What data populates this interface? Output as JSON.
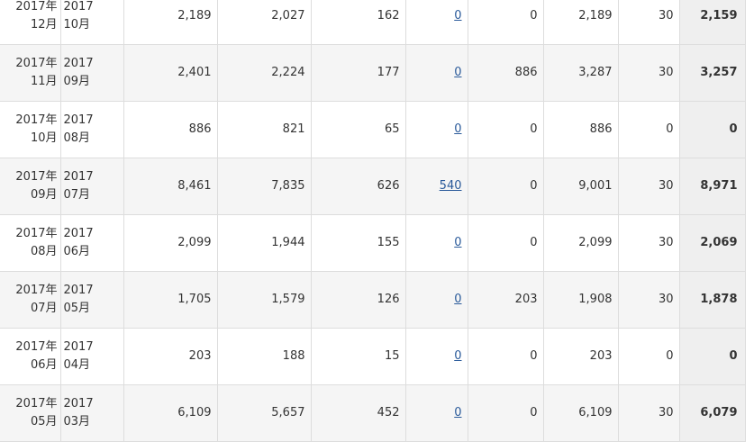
{
  "table": {
    "rows": [
      [
        [
          "2017年",
          "12月"
        ],
        [
          "2017",
          "10月"
        ],
        "2,189",
        "2,027",
        "162",
        "0",
        "0",
        "2,189",
        "30",
        "2,159"
      ],
      [
        [
          "2017年",
          "11月"
        ],
        [
          "2017",
          "09月"
        ],
        "2,401",
        "2,224",
        "177",
        "0",
        "886",
        "3,287",
        "30",
        "3,257"
      ],
      [
        [
          "2017年",
          "10月"
        ],
        [
          "2017",
          "08月"
        ],
        "886",
        "821",
        "65",
        "0",
        "0",
        "886",
        "0",
        "0"
      ],
      [
        [
          "2017年",
          "09月"
        ],
        [
          "2017",
          "07月"
        ],
        "8,461",
        "7,835",
        "626",
        "540",
        "0",
        "9,001",
        "30",
        "8,971"
      ],
      [
        [
          "2017年",
          "08月"
        ],
        [
          "2017",
          "06月"
        ],
        "2,099",
        "1,944",
        "155",
        "0",
        "0",
        "2,099",
        "30",
        "2,069"
      ],
      [
        [
          "2017年",
          "07月"
        ],
        [
          "2017",
          "05月"
        ],
        "1,705",
        "1,579",
        "126",
        "0",
        "203",
        "1,908",
        "30",
        "1,878"
      ],
      [
        [
          "2017年",
          "06月"
        ],
        [
          "2017",
          "04月"
        ],
        "203",
        "188",
        "15",
        "0",
        "0",
        "203",
        "0",
        "0"
      ],
      [
        [
          "2017年",
          "05月"
        ],
        [
          "2017",
          "03月"
        ],
        "6,109",
        "5,657",
        "452",
        "0",
        "0",
        "6,109",
        "30",
        "6,079"
      ]
    ]
  }
}
